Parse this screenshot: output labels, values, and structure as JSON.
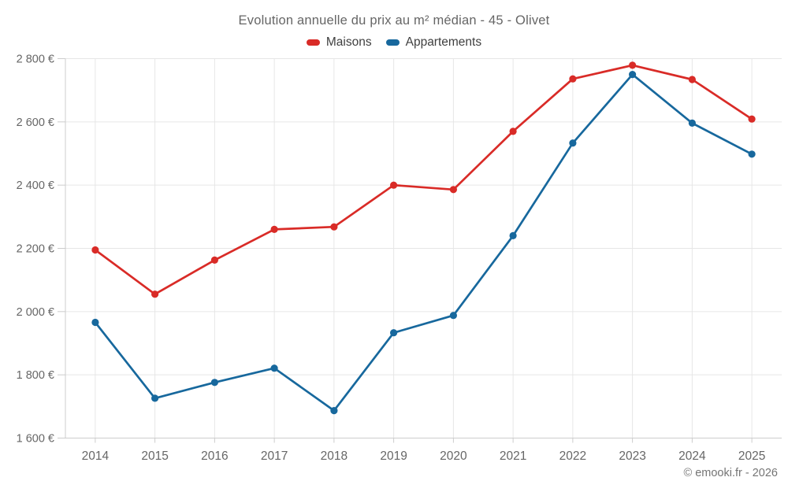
{
  "footer": {
    "copyright": "© emooki.fr - 2026"
  },
  "chart_data": {
    "type": "line",
    "title": "Evolution annuelle du prix au m² médian - 45 - Olivet",
    "categories": [
      "2014",
      "2015",
      "2016",
      "2017",
      "2018",
      "2019",
      "2020",
      "2021",
      "2022",
      "2023",
      "2024",
      "2025"
    ],
    "series": [
      {
        "name": "Maisons",
        "color": "#d92b27",
        "values": [
          2195,
          2055,
          2163,
          2260,
          2268,
          2400,
          2386,
          2570,
          2736,
          2779,
          2734,
          2609
        ]
      },
      {
        "name": "Appartements",
        "color": "#17689d",
        "values": [
          1966,
          1726,
          1776,
          1821,
          1687,
          1933,
          1988,
          2240,
          2533,
          2750,
          2596,
          2498
        ]
      }
    ],
    "xlabel": "",
    "ylabel": "",
    "ylim": [
      1600,
      2800
    ],
    "ytick_step": 200,
    "ytick_labels": [
      "1 600 €",
      "1 800 €",
      "2 000 €",
      "2 200 €",
      "2 400 €",
      "2 600 €",
      "2 800 €"
    ],
    "grid": true,
    "legend_position": "top",
    "colors": {
      "grid": "#e6e6e6",
      "axis": "#cccccc",
      "tick_label": "#666666",
      "title": "#666666"
    }
  }
}
